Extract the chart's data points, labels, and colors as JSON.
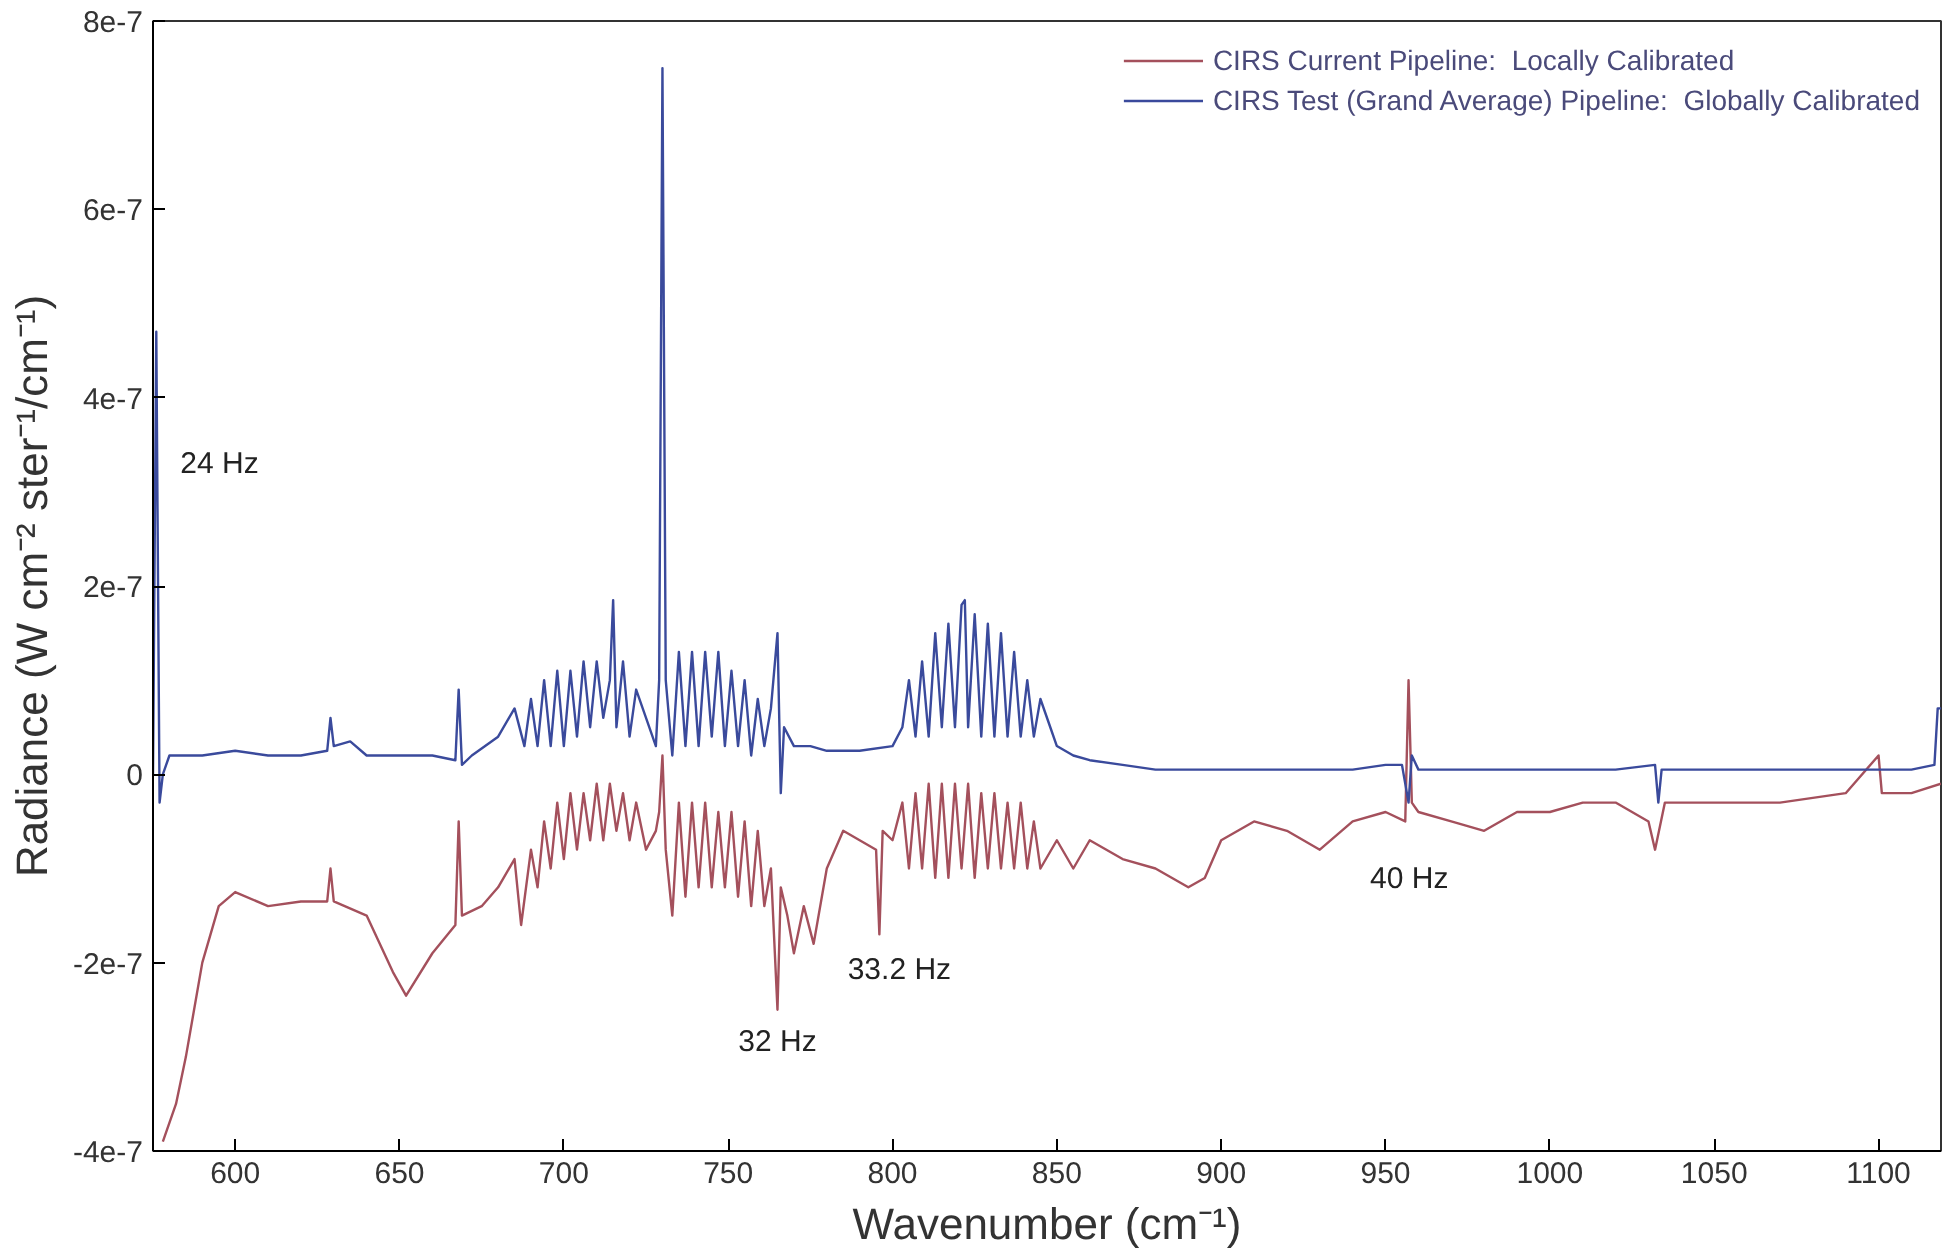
{
  "chart_data": {
    "type": "line",
    "xlabel": "Wavenumber (cm⁻¹)",
    "ylabel": "Radiance (W cm⁻² ster⁻¹/cm⁻¹)",
    "xlim": [
      575,
      1119
    ],
    "xticks": [
      600,
      650,
      700,
      750,
      800,
      850,
      900,
      950,
      1000,
      1050,
      1100
    ],
    "ylim": [
      -4e-07,
      8e-07
    ],
    "yticks": [
      {
        "value": -4e-07,
        "label": "-4e-7"
      },
      {
        "value": -2e-07,
        "label": "-2e-7"
      },
      {
        "value": 0,
        "label": "0"
      },
      {
        "value": 2e-07,
        "label": "2e-7"
      },
      {
        "value": 4e-07,
        "label": "4e-7"
      },
      {
        "value": 6e-07,
        "label": "6e-7"
      },
      {
        "value": 8e-07,
        "label": "8e-7"
      }
    ],
    "grid": false,
    "legend": "top right",
    "marker": "none",
    "line_style": "solid",
    "series": [
      {
        "name": "CIRS Current Pipeline:  Locally Calibrated",
        "color": "#a4505c",
        "x": [
          578,
          582,
          585,
          590,
          595,
          600,
          610,
          620,
          628,
          629,
          630,
          640,
          648,
          652,
          660,
          667,
          668,
          669,
          675,
          680,
          685,
          687,
          690,
          692,
          694,
          696,
          698,
          700,
          702,
          704,
          706,
          708,
          710,
          712,
          714,
          716,
          718,
          720,
          722,
          725,
          728,
          729,
          730,
          731,
          733,
          735,
          737,
          739,
          741,
          743,
          745,
          747,
          749,
          751,
          753,
          755,
          757,
          759,
          761,
          763,
          765,
          766,
          768,
          770,
          773,
          776,
          780,
          785,
          790,
          795,
          796,
          797,
          800,
          803,
          805,
          807,
          809,
          811,
          813,
          815,
          817,
          819,
          821,
          823,
          825,
          827,
          829,
          831,
          833,
          835,
          837,
          839,
          841,
          843,
          845,
          850,
          855,
          860,
          870,
          880,
          890,
          895,
          900,
          910,
          920,
          930,
          940,
          950,
          956,
          957,
          958,
          960,
          970,
          980,
          990,
          1000,
          1010,
          1020,
          1030,
          1032,
          1035,
          1050,
          1070,
          1090,
          1100,
          1101,
          1110,
          1119
        ],
        "values": [
          -3.9e-07,
          -3.5e-07,
          -3e-07,
          -2e-07,
          -1.4e-07,
          -1.25e-07,
          -1.4e-07,
          -1.35e-07,
          -1.35e-07,
          -1e-07,
          -1.35e-07,
          -1.5e-07,
          -2.1e-07,
          -2.35e-07,
          -1.9e-07,
          -1.6e-07,
          -5e-08,
          -1.5e-07,
          -1.4e-07,
          -1.2e-07,
          -9e-08,
          -1.6e-07,
          -8e-08,
          -1.2e-07,
          -5e-08,
          -1e-07,
          -3e-08,
          -9e-08,
          -2e-08,
          -8e-08,
          -2e-08,
          -7e-08,
          -1e-08,
          -7e-08,
          -1e-08,
          -6e-08,
          -2e-08,
          -7e-08,
          -3e-08,
          -8e-08,
          -6e-08,
          -4e-08,
          2e-08,
          -8e-08,
          -1.5e-07,
          -3e-08,
          -1.3e-07,
          -3e-08,
          -1.2e-07,
          -3e-08,
          -1.2e-07,
          -4e-08,
          -1.2e-07,
          -4e-08,
          -1.3e-07,
          -5e-08,
          -1.4e-07,
          -6e-08,
          -1.4e-07,
          -1e-07,
          -2.5e-07,
          -1.2e-07,
          -1.5e-07,
          -1.9e-07,
          -1.4e-07,
          -1.8e-07,
          -1e-07,
          -6e-08,
          -7e-08,
          -8e-08,
          -1.7e-07,
          -6e-08,
          -7e-08,
          -3e-08,
          -1e-07,
          -2e-08,
          -1e-07,
          -1e-08,
          -1.1e-07,
          -1e-08,
          -1.1e-07,
          -1e-08,
          -1e-07,
          -1e-08,
          -1.1e-07,
          -2e-08,
          -1e-07,
          -2e-08,
          -1e-07,
          -3e-08,
          -1e-07,
          -3e-08,
          -1e-07,
          -5e-08,
          -1e-07,
          -7e-08,
          -1e-07,
          -7e-08,
          -9e-08,
          -1e-07,
          -1.2e-07,
          -1.1e-07,
          -7e-08,
          -5e-08,
          -6e-08,
          -8e-08,
          -5e-08,
          -4e-08,
          -5e-08,
          1e-07,
          -3e-08,
          -4e-08,
          -5e-08,
          -6e-08,
          -4e-08,
          -4e-08,
          -3e-08,
          -3e-08,
          -5e-08,
          -8e-08,
          -3e-08,
          -3e-08,
          -3e-08,
          -2e-08,
          2e-08,
          -2e-08,
          -2e-08,
          -1e-08
        ]
      },
      {
        "name": "CIRS Test (Grand Average) Pipeline:  Globally Calibrated",
        "color": "#3a4a9c",
        "x": [
          575,
          576,
          577,
          578,
          579,
          580,
          590,
          600,
          610,
          620,
          628,
          629,
          630,
          635,
          640,
          650,
          660,
          667,
          668,
          669,
          672,
          680,
          685,
          688,
          690,
          692,
          694,
          696,
          698,
          700,
          702,
          704,
          706,
          708,
          710,
          712,
          714,
          715,
          716,
          718,
          720,
          722,
          725,
          728,
          729,
          730,
          731,
          733,
          735,
          737,
          739,
          741,
          743,
          745,
          747,
          749,
          751,
          753,
          755,
          757,
          759,
          761,
          763,
          765,
          766,
          767,
          770,
          775,
          780,
          790,
          800,
          803,
          805,
          807,
          809,
          811,
          813,
          815,
          817,
          819,
          821,
          822,
          823,
          825,
          827,
          829,
          831,
          833,
          835,
          837,
          839,
          841,
          843,
          845,
          848,
          850,
          855,
          860,
          870,
          880,
          900,
          920,
          940,
          950,
          955,
          957,
          958,
          960,
          980,
          1000,
          1020,
          1032,
          1033,
          1034,
          1050,
          1080,
          1100,
          1110,
          1117,
          1118,
          1119
        ],
        "values": [
          0,
          4.7e-07,
          -3e-08,
          0,
          1e-08,
          2e-08,
          2e-08,
          2.5e-08,
          2e-08,
          2e-08,
          2.5e-08,
          6e-08,
          3e-08,
          3.5e-08,
          2e-08,
          2e-08,
          2e-08,
          1.5e-08,
          9e-08,
          1e-08,
          2e-08,
          4e-08,
          7e-08,
          3e-08,
          8e-08,
          3e-08,
          1e-07,
          3e-08,
          1.1e-07,
          3e-08,
          1.1e-07,
          4e-08,
          1.2e-07,
          5e-08,
          1.2e-07,
          6e-08,
          1e-07,
          1.85e-07,
          5e-08,
          1.2e-07,
          4e-08,
          9e-08,
          6e-08,
          3e-08,
          1e-07,
          7.5e-07,
          1e-07,
          2e-08,
          1.3e-07,
          3e-08,
          1.3e-07,
          3e-08,
          1.3e-07,
          4e-08,
          1.3e-07,
          3e-08,
          1.1e-07,
          3e-08,
          1e-07,
          2e-08,
          8e-08,
          3e-08,
          7e-08,
          1.5e-07,
          -2e-08,
          5e-08,
          3e-08,
          3e-08,
          2.5e-08,
          2.5e-08,
          3e-08,
          5e-08,
          1e-07,
          4e-08,
          1.2e-07,
          4e-08,
          1.5e-07,
          5e-08,
          1.6e-07,
          5e-08,
          1.8e-07,
          1.85e-07,
          5e-08,
          1.7e-07,
          4e-08,
          1.6e-07,
          4e-08,
          1.5e-07,
          4e-08,
          1.3e-07,
          4e-08,
          1e-07,
          4e-08,
          8e-08,
          5e-08,
          3e-08,
          2e-08,
          1.5e-08,
          1e-08,
          5e-09,
          5e-09,
          5e-09,
          5e-09,
          1e-08,
          1e-08,
          -3e-08,
          2e-08,
          5e-09,
          5e-09,
          5e-09,
          5e-09,
          1e-08,
          -3e-08,
          5e-09,
          5e-09,
          5e-09,
          5e-09,
          5e-09,
          1e-08,
          7e-08,
          7e-08
        ]
      }
    ],
    "annotations": [
      {
        "text": "24 Hz",
        "x": 576,
        "y": 3.3e-07
      },
      {
        "text": "32 Hz",
        "x": 765,
        "y": -2.5e-07
      },
      {
        "text": "33.2 Hz",
        "x": 796,
        "y": -1.7e-07
      },
      {
        "text": "40 Hz",
        "x": 956,
        "y": -5e-08
      }
    ]
  }
}
